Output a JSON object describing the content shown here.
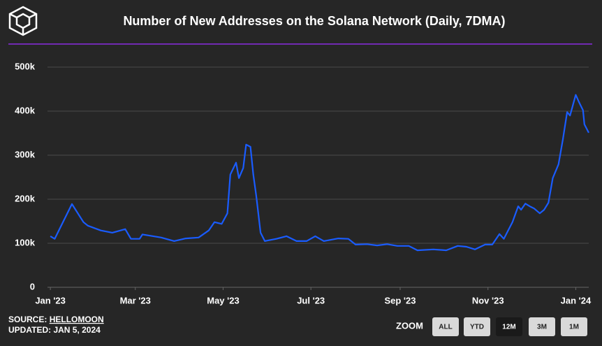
{
  "chart_data": {
    "type": "line",
    "title": "Number of New Addresses on the Solana Network (Daily, 7DMA)",
    "x": [
      0,
      3,
      15,
      23,
      26,
      35,
      43,
      52,
      56,
      62,
      64,
      77,
      86,
      94,
      103,
      110,
      114,
      119,
      123,
      125,
      129,
      131,
      134,
      136,
      139,
      141,
      143,
      146,
      149,
      157,
      164,
      171,
      178,
      184,
      190,
      200,
      207,
      212,
      220,
      227,
      234,
      241,
      249,
      255,
      266,
      275,
      283,
      289,
      295,
      302,
      307,
      312,
      315,
      321,
      325,
      327,
      330,
      333,
      336,
      340,
      343,
      346,
      349,
      353,
      356,
      359,
      361,
      365,
      367,
      370,
      371,
      374
    ],
    "series": [
      {
        "name": "New Addresses",
        "color": "#1a5cff",
        "values": [
          116000,
          110000,
          189000,
          148000,
          140000,
          129000,
          124000,
          132000,
          110000,
          110000,
          120000,
          113000,
          105000,
          111000,
          113000,
          129000,
          148000,
          144000,
          168000,
          256000,
          283000,
          248000,
          271000,
          324000,
          319000,
          256000,
          208000,
          124000,
          105000,
          110000,
          116000,
          105000,
          105000,
          116000,
          105000,
          111000,
          110000,
          97000,
          98000,
          95000,
          98000,
          94000,
          94000,
          84000,
          86000,
          84000,
          94000,
          92000,
          86000,
          97000,
          97000,
          121000,
          110000,
          148000,
          184000,
          176000,
          190000,
          184000,
          179000,
          168000,
          176000,
          192000,
          248000,
          279000,
          335000,
          398000,
          390000,
          437000,
          422000,
          402000,
          370000,
          351000
        ]
      }
    ],
    "xlim": [
      -2,
      374
    ],
    "xticks": [
      {
        "value": 0,
        "label": "Jan '23"
      },
      {
        "value": 59,
        "label": "Mar '23"
      },
      {
        "value": 120,
        "label": "May '23"
      },
      {
        "value": 181,
        "label": "Jul '23"
      },
      {
        "value": 243,
        "label": "Sep '23"
      },
      {
        "value": 304,
        "label": "Nov '23"
      },
      {
        "value": 365,
        "label": "Jan '24"
      }
    ],
    "ylim": [
      0,
      500000
    ],
    "yticks": [
      0,
      {
        "value": 100000,
        "label": "100k"
      },
      {
        "value": 200000,
        "label": "200k"
      },
      {
        "value": 300000,
        "label": "300k"
      },
      {
        "value": 400000,
        "label": "400k"
      },
      {
        "value": 500000,
        "label": "500k"
      }
    ],
    "grid": true
  },
  "footer": {
    "source_prefix": "SOURCE:",
    "source": "HELLOMOON",
    "updated": "UPDATED: JAN 5, 2024"
  },
  "zoom": {
    "label": "ZOOM",
    "buttons": [
      "ALL",
      "YTD",
      "12M",
      "3M",
      "1M"
    ],
    "active": 2
  }
}
